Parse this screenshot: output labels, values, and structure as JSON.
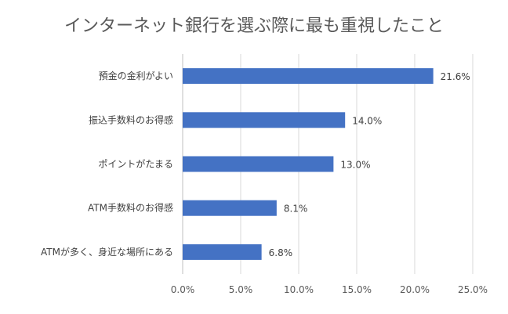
{
  "chart_data": {
    "type": "bar",
    "orientation": "horizontal",
    "title": "インターネット銀行を選ぶ際に最も重視したこと",
    "categories": [
      "預金の金利がよい",
      "振込手数料のお得感",
      "ポイントがたまる",
      "ATM手数料のお得感",
      "ATMが多く、身近な場所にある"
    ],
    "values": [
      21.6,
      14.0,
      13.0,
      8.1,
      6.8
    ],
    "value_labels": [
      "21.6%",
      "14.0%",
      "13.0%",
      "8.1%",
      "6.8%"
    ],
    "xlim": [
      0,
      25
    ],
    "x_ticks": [
      "0.0%",
      "5.0%",
      "10.0%",
      "15.0%",
      "20.0%",
      "25.0%"
    ],
    "grid": true,
    "bar_color": "#4472c4"
  }
}
